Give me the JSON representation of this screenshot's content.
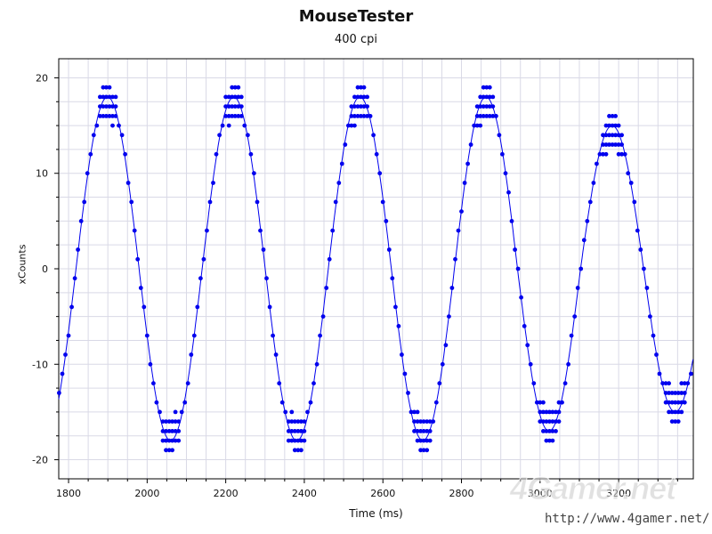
{
  "chart_data": {
    "type": "scatter",
    "title": "MouseTester",
    "subtitle": "400 cpi",
    "xlabel": "Time (ms)",
    "ylabel": "xCounts",
    "xlim": [
      1775,
      3390
    ],
    "ylim": [
      -22,
      22
    ],
    "x_ticks": [
      1800,
      2000,
      2200,
      2400,
      2600,
      2800,
      3000,
      3200
    ],
    "x_tick_labels": [
      "1800",
      "2000",
      "2200",
      "2400",
      "2600",
      "2800",
      "3000",
      "3200"
    ],
    "y_ticks": [
      20,
      10,
      0,
      -10,
      -20
    ],
    "y_tick_labels": [
      "20",
      "10",
      "0",
      "-10",
      "-20"
    ],
    "grid": true,
    "series": [
      {
        "style": "points",
        "color": "#0000ee",
        "sample_interval_ms": 8,
        "x_start": 1776,
        "period_ms": 321,
        "phase_zero_ms": 1819,
        "amplitude": 18,
        "peak_amplitudes": [
          18,
          18,
          18,
          18,
          15
        ],
        "trough_amplitudes": [
          18,
          18,
          18,
          18,
          17,
          15
        ]
      },
      {
        "style": "line",
        "color": "#0000ee",
        "description_of": "smoothed fit through xCounts"
      }
    ]
  },
  "watermark": {
    "brand": "4Gamer.net",
    "url": "http://www.4gamer.net/"
  },
  "colors": {
    "series": "#0000ee",
    "grid": "#d9d9e6",
    "axis": "#000000"
  }
}
